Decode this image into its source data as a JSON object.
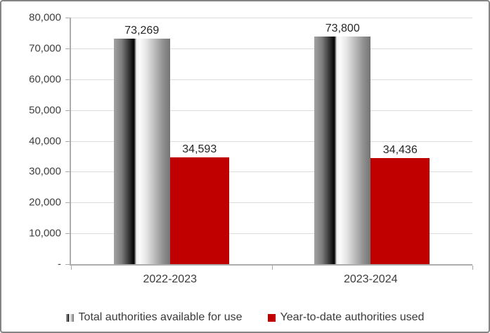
{
  "chart_data": {
    "type": "bar",
    "title": "",
    "categories": [
      "2022-2023",
      "2023-2024"
    ],
    "series": [
      {
        "name": "Total authorities available for use",
        "values": [
          73269,
          73800
        ],
        "labels": [
          "73,269",
          "73,800"
        ],
        "fill": "gray-gradient"
      },
      {
        "name": "Year-to-date authorities used",
        "values": [
          34593,
          34436
        ],
        "labels": [
          "34,593",
          "34,436"
        ],
        "fill": "#c00000"
      }
    ],
    "ylim": [
      0,
      80000
    ],
    "yticks": [
      {
        "value": 80000,
        "label": "80,000"
      },
      {
        "value": 70000,
        "label": "70,000"
      },
      {
        "value": 60000,
        "label": "60,000"
      },
      {
        "value": 50000,
        "label": "50,000"
      },
      {
        "value": 40000,
        "label": "40,000"
      },
      {
        "value": 30000,
        "label": "30,000"
      },
      {
        "value": 20000,
        "label": "20,000"
      },
      {
        "value": 10000,
        "label": "10,000"
      },
      {
        "value": 0,
        "label": "-"
      }
    ],
    "grid": "horizontal",
    "legend_position": "bottom"
  },
  "colors": {
    "bar_red": "#c00000",
    "gridline": "#dcdcdc",
    "axis": "#adadad",
    "border": "#848484",
    "text": "#3a3a3a"
  }
}
